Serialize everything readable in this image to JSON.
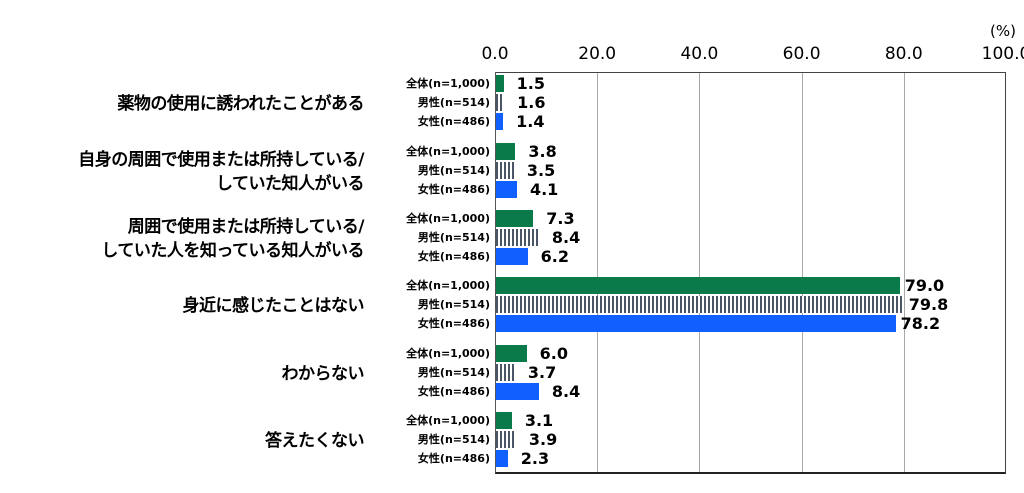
{
  "chart_data": {
    "type": "bar",
    "orientation": "horizontal",
    "title": "",
    "xlabel": "",
    "ylabel": "",
    "unit_label": "(%)",
    "xlim": [
      0,
      100
    ],
    "x_ticks": [
      "0.0",
      "20.0",
      "40.0",
      "60.0",
      "80.0",
      "100.0"
    ],
    "grid": true,
    "categories": [
      "薬物の使用に誘われたことがある",
      "自身の周囲で使用または所持している/していた知人がいる",
      "周囲で使用または所持している/していた人を知っている知人がいる",
      "身近に感じたことはない",
      "わからない",
      "答えたくない"
    ],
    "category_lines": [
      [
        "薬物の使用に誘われたことがある"
      ],
      [
        "自身の周囲で使用または所持している/",
        "していた知人がいる"
      ],
      [
        "周囲で使用または所持している/",
        "していた人を知っている知人がいる"
      ],
      [
        "身近に感じたことはない"
      ],
      [
        "わからない"
      ],
      [
        "答えたくない"
      ]
    ],
    "series": [
      {
        "name": "全体(n=1,000)",
        "color": "#0b7a4b",
        "pattern": "solid",
        "values": [
          1.5,
          3.8,
          7.3,
          79.0,
          6.0,
          3.1
        ]
      },
      {
        "name": "男性(n=514)",
        "color": "#4a5568",
        "pattern": "vertical-stripes",
        "values": [
          1.6,
          3.5,
          8.4,
          79.8,
          3.7,
          3.9
        ]
      },
      {
        "name": "女性(n=486)",
        "color": "#1060ff",
        "pattern": "solid",
        "values": [
          1.4,
          4.1,
          6.2,
          78.2,
          8.4,
          2.3
        ]
      }
    ],
    "value_labels": [
      [
        "1.5",
        "1.6",
        "1.4"
      ],
      [
        "3.8",
        "3.5",
        "4.1"
      ],
      [
        "7.3",
        "8.4",
        "6.2"
      ],
      [
        "79.0",
        "79.8",
        "78.2"
      ],
      [
        "6.0",
        "3.7",
        "8.4"
      ],
      [
        "3.1",
        "3.9",
        "2.3"
      ]
    ]
  }
}
